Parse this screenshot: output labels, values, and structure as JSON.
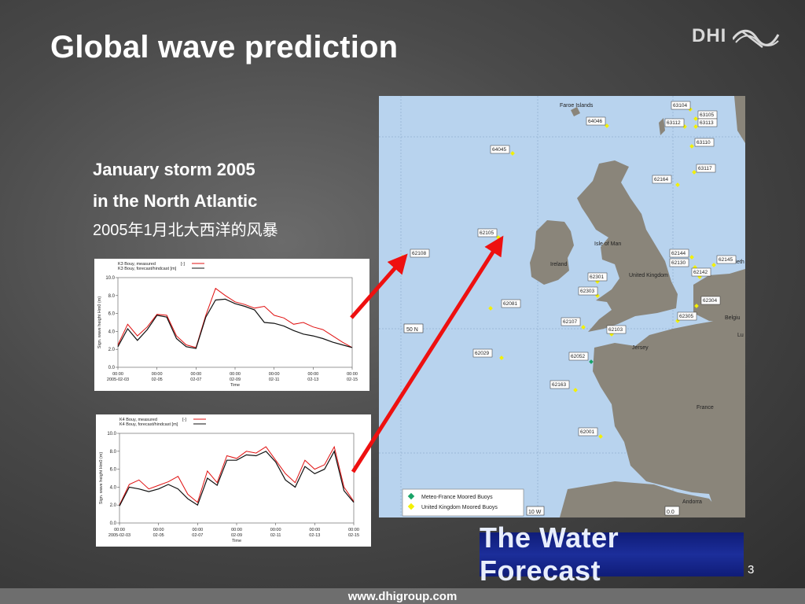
{
  "slide": {
    "title": "Global wave prediction",
    "logo": "DHI",
    "subtitle_line1": "January storm 2005",
    "subtitle_line2": "in the North Atlantic",
    "subtitle_cn": "2005年1月北大西洋的风暴",
    "page_number": "3",
    "footer": "www.dhigroup.com"
  },
  "banner": {
    "text": "The Water Forecast"
  },
  "map": {
    "labels": {
      "faroe": "Faroe Islands",
      "ireland": "Ireland",
      "uk": "United Kingdom",
      "isle_of_man": "Isle of Man",
      "france": "France",
      "jersey": "Jersey",
      "andorra": "Andorra",
      "belgium": "Belgiu",
      "neth": "Neth",
      "lux": "Lu",
      "lat": "50 N",
      "lon": "10 W",
      "lon0": "0.0"
    },
    "buoys": [
      "63104",
      "63105",
      "63113",
      "63112",
      "64046",
      "63110",
      "64045",
      "63117",
      "62164",
      "62105",
      "62108",
      "62144",
      "62145",
      "62130",
      "62142",
      "62301",
      "62303",
      "62304",
      "62081",
      "62305",
      "62107",
      "62103",
      "62029",
      "62052",
      "62163",
      "62001"
    ],
    "legend": [
      "Meteo-France Moored Buoys",
      "United Kingdom Moored Buoys"
    ],
    "colors": {
      "sea": "#b8d3ee",
      "land": "#8a857a",
      "uk_buoy": "#f3f000",
      "fr_buoy": "#1aa368"
    }
  },
  "chart_data": [
    {
      "type": "line",
      "legend": [
        "K3 Bouy, measured",
        "K3 Bouy, forecast/hindcast [m]"
      ],
      "legend_units": [
        "[-]",
        "[m]"
      ],
      "ylabel": "Sign. wave height Hm0 (m)",
      "xlabel": "Time",
      "ylim": [
        0,
        10
      ],
      "yticks": [
        "0.0",
        "2.0",
        "4.0",
        "6.0",
        "8.0",
        "10.0"
      ],
      "xticks": [
        [
          "00:00",
          "2005-02-03"
        ],
        [
          "00:00",
          "02-05"
        ],
        [
          "00:00",
          "02-07"
        ],
        [
          "00:00",
          "02-09"
        ],
        [
          "00:00",
          "02-11"
        ],
        [
          "00:00",
          "02-13"
        ],
        [
          "00:00",
          "02-15"
        ]
      ],
      "x": [
        0,
        0.5,
        1,
        1.5,
        2,
        2.5,
        3,
        3.5,
        4,
        4.5,
        5,
        5.5,
        6,
        6.5,
        7,
        7.5,
        8,
        8.5,
        9,
        9.5,
        10,
        10.5,
        11,
        11.5,
        12
      ],
      "series": [
        {
          "name": "K3 Bouy, measured",
          "values": [
            2.5,
            4.8,
            3.5,
            4.5,
            5.9,
            5.8,
            3.5,
            2.5,
            2.2,
            5.8,
            8.8,
            8.0,
            7.3,
            7.0,
            6.6,
            6.8,
            5.8,
            5.5,
            4.8,
            5.0,
            4.5,
            4.2,
            3.5,
            2.8,
            2.2
          ]
        },
        {
          "name": "K3 Bouy, forecast/hindcast [m]",
          "values": [
            2.3,
            4.3,
            3.0,
            4.2,
            5.8,
            5.6,
            3.2,
            2.3,
            2.1,
            5.6,
            7.5,
            7.6,
            7.1,
            6.8,
            6.4,
            5.0,
            4.9,
            4.6,
            4.1,
            3.7,
            3.5,
            3.2,
            2.8,
            2.5,
            2.2
          ]
        }
      ]
    },
    {
      "type": "line",
      "legend": [
        "K4 Bouy, measured",
        "K4 Bouy, forecast/hindcast [m]"
      ],
      "legend_units": [
        "[-]",
        "[m]"
      ],
      "ylabel": "Sign. wave height Hm0 (m)",
      "xlabel": "Time",
      "ylim": [
        0,
        10
      ],
      "yticks": [
        "0.0",
        "2.0",
        "4.0",
        "6.0",
        "8.0",
        "10.0"
      ],
      "xticks": [
        [
          "00:00",
          "2005-02-03"
        ],
        [
          "00:00",
          "02-05"
        ],
        [
          "00:00",
          "02-07"
        ],
        [
          "00:00",
          "02-09"
        ],
        [
          "00:00",
          "02-11"
        ],
        [
          "00:00",
          "02-13"
        ],
        [
          "00:00",
          "02-15"
        ]
      ],
      "x": [
        0,
        0.5,
        1,
        1.5,
        2,
        2.5,
        3,
        3.5,
        4,
        4.5,
        5,
        5.5,
        6,
        6.5,
        7,
        7.5,
        8,
        8.5,
        9,
        9.5,
        10,
        10.5,
        11,
        11.5,
        12
      ],
      "series": [
        {
          "name": "K4 Bouy, measured",
          "values": [
            2.0,
            4.3,
            4.8,
            3.8,
            4.2,
            4.6,
            5.2,
            3.2,
            2.3,
            5.8,
            4.5,
            7.5,
            7.2,
            8.0,
            7.8,
            8.5,
            7.0,
            5.5,
            4.5,
            7.0,
            6.0,
            6.5,
            8.5,
            4.0,
            2.4
          ]
        },
        {
          "name": "K4 Bouy, forecast/hindcast [m]",
          "values": [
            1.9,
            4.0,
            3.8,
            3.5,
            3.8,
            4.3,
            3.8,
            2.7,
            2.0,
            5.0,
            4.2,
            7.0,
            7.0,
            7.6,
            7.5,
            8.0,
            6.8,
            4.8,
            4.0,
            6.3,
            5.5,
            6.0,
            8.0,
            3.6,
            2.3
          ]
        }
      ]
    }
  ]
}
